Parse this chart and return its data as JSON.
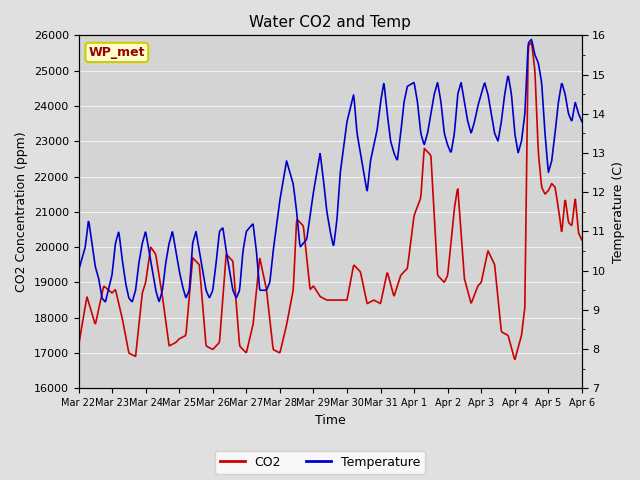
{
  "title": "Water CO2 and Temp",
  "xlabel": "Time",
  "ylabel_left": "CO2 Concentration (ppm)",
  "ylabel_right": "Temperature (C)",
  "ylim_left": [
    16000,
    26000
  ],
  "ylim_right": [
    7.0,
    16.0
  ],
  "yticks_left": [
    16000,
    17000,
    18000,
    19000,
    20000,
    21000,
    22000,
    23000,
    24000,
    25000,
    26000
  ],
  "yticks_right_major": [
    7.0,
    8.0,
    9.0,
    10.0,
    11.0,
    12.0,
    13.0,
    14.0,
    15.0,
    16.0
  ],
  "yticks_right_minor": [
    7.5,
    8.5,
    9.5,
    10.5,
    11.5,
    12.5,
    13.5,
    14.5,
    15.5
  ],
  "x_tick_labels": [
    "Mar 22",
    "Mar 23",
    "Mar 24",
    "Mar 25",
    "Mar 26",
    "Mar 27",
    "Mar 28",
    "Mar 29",
    "Mar 30",
    "Mar 31",
    "Apr 1",
    "Apr 2",
    "Apr 3",
    "Apr 4",
    "Apr 5",
    "Apr 6"
  ],
  "co2_color": "#cc0000",
  "temp_color": "#0000cc",
  "background_color": "#e0e0e0",
  "plot_bg_color": "#d4d4d4",
  "grid_color": "#f0f0f0",
  "legend_co2": "CO2",
  "legend_temp": "Temperature",
  "watermark_text": "WP_met",
  "watermark_color": "#990000",
  "watermark_bg": "#ffffcc",
  "watermark_border": "#cccc00",
  "title_fontsize": 11,
  "label_fontsize": 9,
  "tick_fontsize": 8
}
